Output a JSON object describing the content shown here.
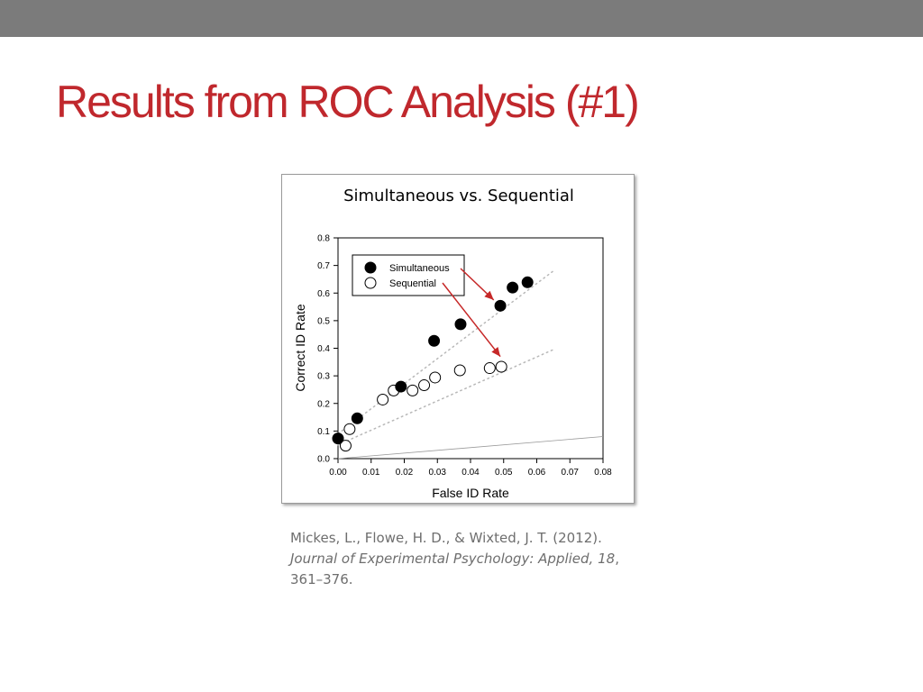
{
  "slide": {
    "title": "Results from ROC Analysis (#1)"
  },
  "citation": {
    "line1": "Mickes, L., Flowe, H. D., & Wixted, J. T. (2012).",
    "journal": "Journal of Experimental Psychology: Applied, 18",
    "journal_suffix": ",",
    "pages": "361–376."
  },
  "colors": {
    "title": "#c0282d",
    "top_bar": "#7b7b7b",
    "arrow": "#c62828"
  },
  "chart_data": {
    "type": "scatter",
    "title": "Simultaneous vs. Sequential",
    "xlabel": "False ID Rate",
    "ylabel": "Correct ID Rate",
    "xlim": [
      0,
      0.08
    ],
    "ylim": [
      0,
      0.8
    ],
    "xticks": [
      "0.00",
      "0.01",
      "0.02",
      "0.03",
      "0.04",
      "0.05",
      "0.06",
      "0.07",
      "0.08"
    ],
    "yticks": [
      "0.0",
      "0.1",
      "0.2",
      "0.3",
      "0.4",
      "0.5",
      "0.6",
      "0.7",
      "0.8"
    ],
    "grid": false,
    "legend_position": "top-left",
    "chance_line": {
      "x": [
        0,
        0.08
      ],
      "y": [
        0,
        0.08
      ]
    },
    "series": [
      {
        "name": "Simultaneous",
        "marker": "filled",
        "points": [
          {
            "x": 0.0,
            "y": 0.073
          },
          {
            "x": 0.0058,
            "y": 0.146
          },
          {
            "x": 0.019,
            "y": 0.261
          },
          {
            "x": 0.029,
            "y": 0.427
          },
          {
            "x": 0.037,
            "y": 0.487
          },
          {
            "x": 0.049,
            "y": 0.554
          },
          {
            "x": 0.0527,
            "y": 0.62
          },
          {
            "x": 0.0572,
            "y": 0.639
          }
        ],
        "fit_line": {
          "x": [
            0.0,
            0.065
          ],
          "y": [
            0.09,
            0.68
          ]
        }
      },
      {
        "name": "Sequential",
        "marker": "open",
        "points": [
          {
            "x": 0.0023,
            "y": 0.047
          },
          {
            "x": 0.0035,
            "y": 0.107
          },
          {
            "x": 0.0135,
            "y": 0.214
          },
          {
            "x": 0.0168,
            "y": 0.247
          },
          {
            "x": 0.0225,
            "y": 0.247
          },
          {
            "x": 0.026,
            "y": 0.266
          },
          {
            "x": 0.0293,
            "y": 0.294
          },
          {
            "x": 0.0368,
            "y": 0.32
          },
          {
            "x": 0.0458,
            "y": 0.328
          },
          {
            "x": 0.0493,
            "y": 0.333
          }
        ],
        "fit_line": {
          "x": [
            0.0,
            0.065
          ],
          "y": [
            0.05,
            0.395
          ]
        }
      }
    ],
    "annotation_arrows": [
      {
        "target_series": "Simultaneous",
        "target": {
          "x": 0.047,
          "y": 0.575
        }
      },
      {
        "target_series": "Sequential",
        "target": {
          "x": 0.049,
          "y": 0.37
        }
      }
    ]
  }
}
